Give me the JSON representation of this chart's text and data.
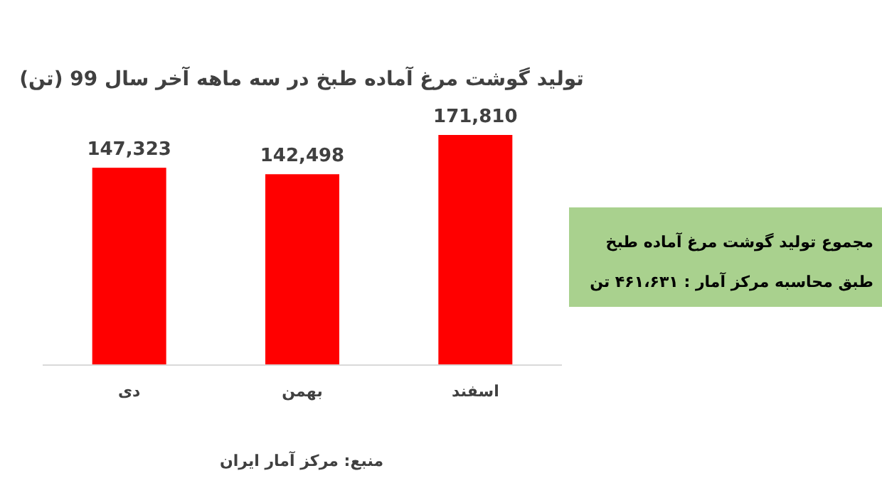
{
  "chart_data": {
    "type": "bar",
    "title": "تولید گوشت مرغ آماده طبخ در سه ماهه آخر سال 99 (تن)",
    "categories": [
      "دی",
      "بهمن",
      "اسفند"
    ],
    "values": [
      147323,
      142498,
      171810
    ],
    "color": "#ff0000",
    "value_labels": [
      "147,323",
      "142,498",
      "171,810"
    ],
    "annotations": [
      "منبع: مرکز آمار ایران",
      "مجموع تولید گوشت مرغ آماده طبخ",
      "طبق محاسبه مرکز آمار : ۴۶۱،۶۳۱ تن"
    ]
  }
}
